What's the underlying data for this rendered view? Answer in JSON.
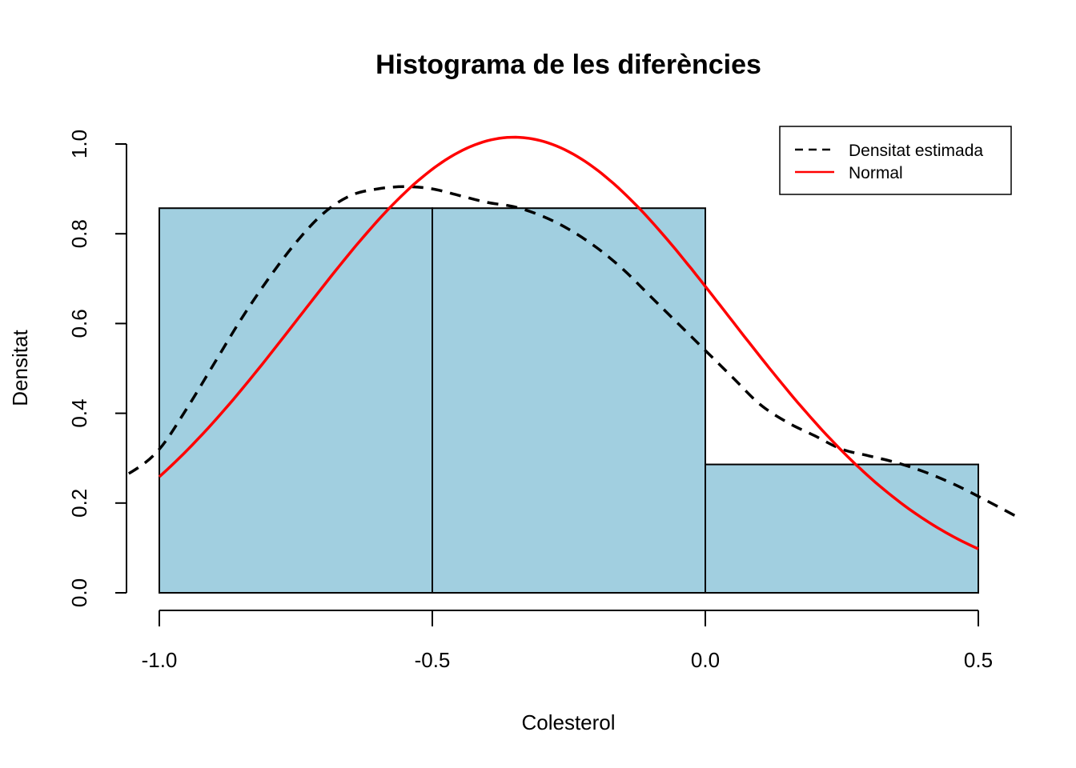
{
  "chart_data": {
    "type": "bar",
    "title": "Histograma de les diferències",
    "xlabel": "Colesterol",
    "ylabel": "Densitat",
    "xlim": [
      -1.12,
      0.57
    ],
    "ylim": [
      -0.04,
      1.04
    ],
    "x_ticks": [
      -1.0,
      -0.5,
      0.0,
      0.5
    ],
    "x_tick_labels": [
      "-1.0",
      "-0.5",
      "0.0",
      "0.5"
    ],
    "y_ticks": [
      0.0,
      0.2,
      0.4,
      0.6,
      0.8,
      1.0
    ],
    "y_tick_labels": [
      "0.0",
      "0.2",
      "0.4",
      "0.6",
      "0.8",
      "1.0"
    ],
    "grid": false,
    "legend_position": "top-right",
    "bins": [
      {
        "start": -1.0,
        "end": -0.5,
        "density": 0.857
      },
      {
        "start": -0.5,
        "end": 0.0,
        "density": 0.857
      },
      {
        "start": 0.0,
        "end": 0.5,
        "density": 0.286
      }
    ],
    "series": [
      {
        "name": "Densitat estimada",
        "style": "dashed",
        "color": "#000000",
        "x": [
          -1.12,
          -1.05,
          -1.0,
          -0.95,
          -0.9,
          -0.85,
          -0.8,
          -0.75,
          -0.7,
          -0.65,
          -0.6,
          -0.55,
          -0.5,
          -0.45,
          -0.4,
          -0.35,
          -0.3,
          -0.25,
          -0.2,
          -0.15,
          -0.1,
          -0.05,
          0.0,
          0.05,
          0.1,
          0.15,
          0.2,
          0.25,
          0.3,
          0.35,
          0.4,
          0.45,
          0.5,
          0.57
        ],
        "y": [
          0.23,
          0.27,
          0.32,
          0.41,
          0.51,
          0.61,
          0.7,
          0.78,
          0.845,
          0.885,
          0.9,
          0.905,
          0.9,
          0.885,
          0.87,
          0.86,
          0.84,
          0.81,
          0.77,
          0.72,
          0.66,
          0.6,
          0.54,
          0.48,
          0.42,
          0.38,
          0.35,
          0.32,
          0.305,
          0.29,
          0.27,
          0.245,
          0.215,
          0.17
        ]
      },
      {
        "name": "Normal",
        "style": "solid",
        "color": "#ff0000",
        "mean": -0.35,
        "sd": 0.393,
        "x_range": [
          -1.0,
          0.5
        ]
      }
    ]
  },
  "colors": {
    "bar_fill": "#a1cfe0",
    "bar_stroke": "#000000",
    "axis": "#000000"
  }
}
